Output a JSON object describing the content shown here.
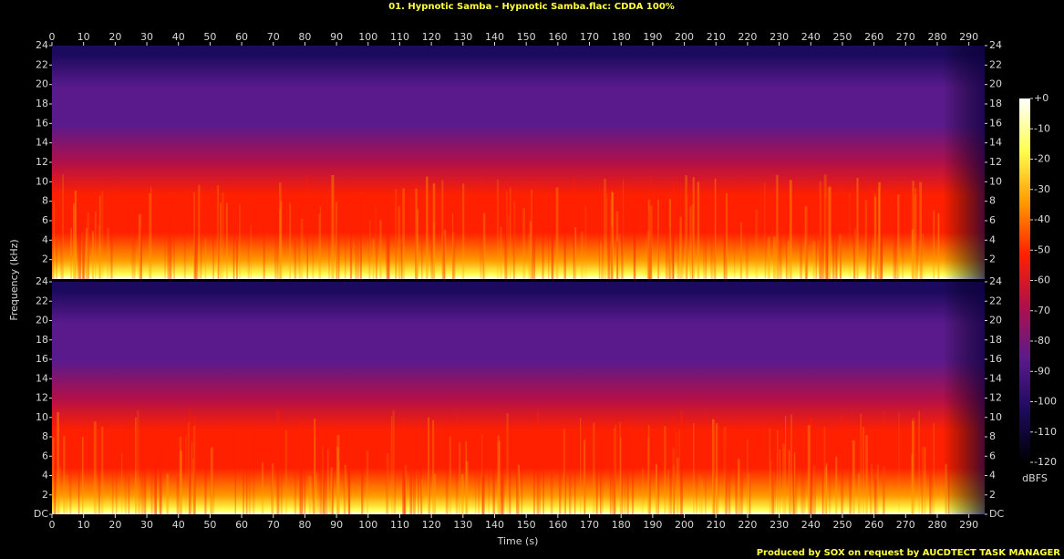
{
  "chart_data": {
    "type": "spectrogram",
    "title": "01. Hypnotic Samba - Hypnotic Samba.flac: CDDA 100%",
    "x_label": "Time (s)",
    "y_label": "Frequency (kHz)",
    "xlim": [
      0,
      295
    ],
    "xticks": [
      0,
      10,
      20,
      30,
      40,
      50,
      60,
      70,
      80,
      90,
      100,
      110,
      120,
      130,
      140,
      150,
      160,
      170,
      180,
      190,
      200,
      210,
      220,
      230,
      240,
      250,
      260,
      270,
      280,
      290
    ],
    "panels": [
      {
        "ylim": [
          0,
          24
        ],
        "yticks": [
          2,
          4,
          6,
          8,
          10,
          12,
          14,
          16,
          18,
          20,
          22,
          24
        ]
      },
      {
        "ylim": [
          0,
          24
        ],
        "yticks": [
          {
            "value": 0,
            "label": "DC"
          },
          2,
          4,
          6,
          8,
          10,
          12,
          14,
          16,
          18,
          20,
          22,
          24
        ]
      }
    ],
    "colorbar": {
      "label": "dBFS",
      "lim": [
        -120,
        0
      ],
      "ticks": [
        {
          "value": 0,
          "label": "+0"
        },
        -10,
        -20,
        -30,
        -40,
        -50,
        -60,
        -70,
        -80,
        -90,
        -100,
        -110,
        -120
      ],
      "colors": [
        "#000000",
        "#1c0a5e",
        "#5a1a8c",
        "#b0104a",
        "#ff2000",
        "#ff9a00",
        "#ffff50",
        "#ffffff"
      ]
    },
    "footer": "Produced by SOX on request by AUCDTECT TASK MANAGER"
  }
}
